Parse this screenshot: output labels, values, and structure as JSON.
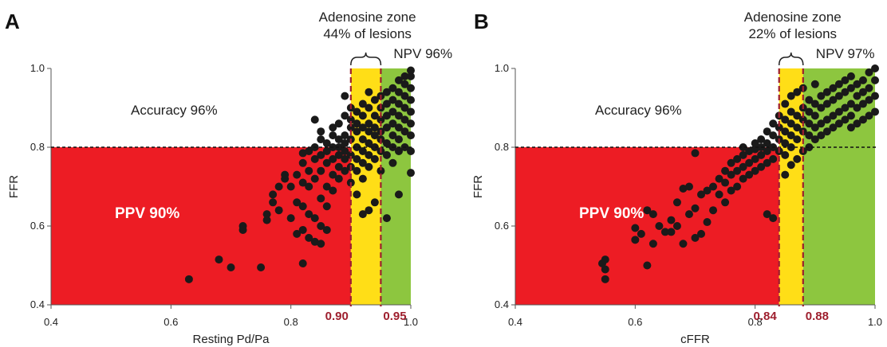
{
  "chart_data": [
    {
      "type": "scatter",
      "panel": "A",
      "xlabel": "Resting Pd/Pa",
      "ylabel": "FFR",
      "xlim": [
        0.4,
        1.0
      ],
      "ylim": [
        0.4,
        1.0
      ],
      "xticks": [
        "0.4",
        "0.6",
        "0.8",
        "1.0"
      ],
      "yticks": [
        "0.4",
        "0.6",
        "0.8",
        "1.0"
      ],
      "threshold_y": 0.8,
      "cutoffs": [
        0.9,
        0.95
      ],
      "cutoff_labels": [
        "0.90",
        "0.95"
      ],
      "zone_title": "Adenosine zone",
      "zone_subtitle": "44% of lesions",
      "npv_label": "NPV 96%",
      "accuracy_label": "Accuracy 96%",
      "ppv_label": "PPV 90%",
      "colors": {
        "red": "#ed1c24",
        "yellow": "#ffde17",
        "green": "#8dc63f",
        "cutoff": "#9e1f2e",
        "point": "#1a1a1a"
      },
      "points": [
        [
          0.63,
          0.465
        ],
        [
          0.68,
          0.515
        ],
        [
          0.7,
          0.495
        ],
        [
          0.72,
          0.59
        ],
        [
          0.72,
          0.6
        ],
        [
          0.75,
          0.495
        ],
        [
          0.76,
          0.615
        ],
        [
          0.76,
          0.63
        ],
        [
          0.77,
          0.66
        ],
        [
          0.77,
          0.68
        ],
        [
          0.78,
          0.64
        ],
        [
          0.78,
          0.7
        ],
        [
          0.79,
          0.72
        ],
        [
          0.79,
          0.73
        ],
        [
          0.8,
          0.62
        ],
        [
          0.8,
          0.7
        ],
        [
          0.81,
          0.58
        ],
        [
          0.81,
          0.66
        ],
        [
          0.81,
          0.73
        ],
        [
          0.82,
          0.505
        ],
        [
          0.82,
          0.59
        ],
        [
          0.82,
          0.65
        ],
        [
          0.82,
          0.71
        ],
        [
          0.82,
          0.76
        ],
        [
          0.82,
          0.785
        ],
        [
          0.83,
          0.57
        ],
        [
          0.83,
          0.63
        ],
        [
          0.83,
          0.7
        ],
        [
          0.83,
          0.74
        ],
        [
          0.83,
          0.79
        ],
        [
          0.84,
          0.56
        ],
        [
          0.84,
          0.62
        ],
        [
          0.84,
          0.72
        ],
        [
          0.84,
          0.77
        ],
        [
          0.84,
          0.8
        ],
        [
          0.84,
          0.87
        ],
        [
          0.85,
          0.555
        ],
        [
          0.85,
          0.6
        ],
        [
          0.85,
          0.67
        ],
        [
          0.85,
          0.74
        ],
        [
          0.85,
          0.78
        ],
        [
          0.85,
          0.82
        ],
        [
          0.85,
          0.84
        ],
        [
          0.86,
          0.59
        ],
        [
          0.86,
          0.65
        ],
        [
          0.86,
          0.7
        ],
        [
          0.86,
          0.76
        ],
        [
          0.86,
          0.79
        ],
        [
          0.86,
          0.81
        ],
        [
          0.87,
          0.69
        ],
        [
          0.87,
          0.73
        ],
        [
          0.87,
          0.77
        ],
        [
          0.87,
          0.8
        ],
        [
          0.87,
          0.83
        ],
        [
          0.87,
          0.85
        ],
        [
          0.88,
          0.72
        ],
        [
          0.88,
          0.75
        ],
        [
          0.88,
          0.78
        ],
        [
          0.88,
          0.8
        ],
        [
          0.88,
          0.82
        ],
        [
          0.88,
          0.86
        ],
        [
          0.89,
          0.74
        ],
        [
          0.89,
          0.77
        ],
        [
          0.89,
          0.79
        ],
        [
          0.89,
          0.81
        ],
        [
          0.89,
          0.83
        ],
        [
          0.89,
          0.88
        ],
        [
          0.89,
          0.93
        ],
        [
          0.9,
          0.71
        ],
        [
          0.9,
          0.75
        ],
        [
          0.9,
          0.78
        ],
        [
          0.9,
          0.82
        ],
        [
          0.9,
          0.85
        ],
        [
          0.9,
          0.87
        ],
        [
          0.9,
          0.9
        ],
        [
          0.91,
          0.68
        ],
        [
          0.91,
          0.74
        ],
        [
          0.91,
          0.77
        ],
        [
          0.91,
          0.8
        ],
        [
          0.91,
          0.84
        ],
        [
          0.91,
          0.86
        ],
        [
          0.91,
          0.89
        ],
        [
          0.92,
          0.63
        ],
        [
          0.92,
          0.72
        ],
        [
          0.92,
          0.76
        ],
        [
          0.92,
          0.79
        ],
        [
          0.92,
          0.82
        ],
        [
          0.92,
          0.85
        ],
        [
          0.92,
          0.88
        ],
        [
          0.92,
          0.91
        ],
        [
          0.93,
          0.64
        ],
        [
          0.93,
          0.75
        ],
        [
          0.93,
          0.78
        ],
        [
          0.93,
          0.81
        ],
        [
          0.93,
          0.84
        ],
        [
          0.93,
          0.86
        ],
        [
          0.93,
          0.9
        ],
        [
          0.93,
          0.94
        ],
        [
          0.94,
          0.66
        ],
        [
          0.94,
          0.77
        ],
        [
          0.94,
          0.8
        ],
        [
          0.94,
          0.83
        ],
        [
          0.94,
          0.85
        ],
        [
          0.94,
          0.88
        ],
        [
          0.94,
          0.92
        ],
        [
          0.95,
          0.74
        ],
        [
          0.95,
          0.79
        ],
        [
          0.95,
          0.82
        ],
        [
          0.95,
          0.84
        ],
        [
          0.95,
          0.87
        ],
        [
          0.95,
          0.9
        ],
        [
          0.95,
          0.93
        ],
        [
          0.96,
          0.62
        ],
        [
          0.96,
          0.78
        ],
        [
          0.96,
          0.81
        ],
        [
          0.96,
          0.85
        ],
        [
          0.96,
          0.88
        ],
        [
          0.96,
          0.91
        ],
        [
          0.96,
          0.94
        ],
        [
          0.97,
          0.76
        ],
        [
          0.97,
          0.8
        ],
        [
          0.97,
          0.83
        ],
        [
          0.97,
          0.86
        ],
        [
          0.97,
          0.89
        ],
        [
          0.97,
          0.92
        ],
        [
          0.97,
          0.95
        ],
        [
          0.98,
          0.68
        ],
        [
          0.98,
          0.79
        ],
        [
          0.98,
          0.82
        ],
        [
          0.98,
          0.85
        ],
        [
          0.98,
          0.88
        ],
        [
          0.98,
          0.91
        ],
        [
          0.98,
          0.94
        ],
        [
          0.98,
          0.97
        ],
        [
          0.99,
          0.8
        ],
        [
          0.99,
          0.84
        ],
        [
          0.99,
          0.87
        ],
        [
          0.99,
          0.9
        ],
        [
          0.99,
          0.93
        ],
        [
          0.99,
          0.96
        ],
        [
          0.99,
          0.98
        ],
        [
          1.0,
          0.735
        ],
        [
          1.0,
          0.79
        ],
        [
          1.0,
          0.83
        ],
        [
          1.0,
          0.86
        ],
        [
          1.0,
          0.89
        ],
        [
          1.0,
          0.92
        ],
        [
          1.0,
          0.95
        ],
        [
          1.0,
          0.98
        ],
        [
          1.0,
          0.995
        ]
      ]
    },
    {
      "type": "scatter",
      "panel": "B",
      "xlabel": "cFFR",
      "ylabel": "FFR",
      "xlim": [
        0.4,
        1.0
      ],
      "ylim": [
        0.4,
        1.0
      ],
      "xticks": [
        "0.4",
        "0.6",
        "0.8",
        "1.0"
      ],
      "yticks": [
        "0.4",
        "0.6",
        "0.8",
        "1.0"
      ],
      "threshold_y": 0.8,
      "cutoffs": [
        0.84,
        0.88
      ],
      "cutoff_labels": [
        "0.84",
        "0.88"
      ],
      "zone_title": "Adenosine zone",
      "zone_subtitle": "22% of lesions",
      "npv_label": "NPV 97%",
      "accuracy_label": "Accuracy 96%",
      "ppv_label": "PPV 90%",
      "colors": {
        "red": "#ed1c24",
        "yellow": "#ffde17",
        "green": "#8dc63f",
        "cutoff": "#9e1f2e",
        "point": "#1a1a1a"
      },
      "points": [
        [
          0.545,
          0.505
        ],
        [
          0.55,
          0.515
        ],
        [
          0.55,
          0.49
        ],
        [
          0.55,
          0.465
        ],
        [
          0.6,
          0.565
        ],
        [
          0.6,
          0.595
        ],
        [
          0.61,
          0.58
        ],
        [
          0.62,
          0.5
        ],
        [
          0.62,
          0.64
        ],
        [
          0.63,
          0.555
        ],
        [
          0.63,
          0.63
        ],
        [
          0.64,
          0.6
        ],
        [
          0.65,
          0.585
        ],
        [
          0.66,
          0.585
        ],
        [
          0.66,
          0.615
        ],
        [
          0.67,
          0.6
        ],
        [
          0.67,
          0.66
        ],
        [
          0.68,
          0.555
        ],
        [
          0.68,
          0.695
        ],
        [
          0.69,
          0.63
        ],
        [
          0.69,
          0.7
        ],
        [
          0.7,
          0.57
        ],
        [
          0.7,
          0.645
        ],
        [
          0.7,
          0.785
        ],
        [
          0.71,
          0.58
        ],
        [
          0.71,
          0.68
        ],
        [
          0.72,
          0.61
        ],
        [
          0.72,
          0.69
        ],
        [
          0.73,
          0.64
        ],
        [
          0.73,
          0.7
        ],
        [
          0.74,
          0.68
        ],
        [
          0.74,
          0.72
        ],
        [
          0.75,
          0.66
        ],
        [
          0.75,
          0.71
        ],
        [
          0.75,
          0.74
        ],
        [
          0.76,
          0.69
        ],
        [
          0.76,
          0.73
        ],
        [
          0.76,
          0.76
        ],
        [
          0.77,
          0.7
        ],
        [
          0.77,
          0.74
        ],
        [
          0.77,
          0.77
        ],
        [
          0.78,
          0.72
        ],
        [
          0.78,
          0.75
        ],
        [
          0.78,
          0.78
        ],
        [
          0.78,
          0.8
        ],
        [
          0.79,
          0.73
        ],
        [
          0.79,
          0.76
        ],
        [
          0.79,
          0.79
        ],
        [
          0.8,
          0.74
        ],
        [
          0.8,
          0.77
        ],
        [
          0.8,
          0.795
        ],
        [
          0.8,
          0.81
        ],
        [
          0.81,
          0.75
        ],
        [
          0.81,
          0.78
        ],
        [
          0.81,
          0.8
        ],
        [
          0.81,
          0.82
        ],
        [
          0.82,
          0.63
        ],
        [
          0.82,
          0.76
        ],
        [
          0.82,
          0.79
        ],
        [
          0.82,
          0.81
        ],
        [
          0.82,
          0.84
        ],
        [
          0.83,
          0.62
        ],
        [
          0.83,
          0.77
        ],
        [
          0.83,
          0.8
        ],
        [
          0.83,
          0.83
        ],
        [
          0.83,
          0.86
        ],
        [
          0.84,
          0.79
        ],
        [
          0.84,
          0.82
        ],
        [
          0.84,
          0.85
        ],
        [
          0.84,
          0.88
        ],
        [
          0.85,
          0.73
        ],
        [
          0.85,
          0.78
        ],
        [
          0.85,
          0.81
        ],
        [
          0.85,
          0.84
        ],
        [
          0.85,
          0.87
        ],
        [
          0.85,
          0.91
        ],
        [
          0.86,
          0.755
        ],
        [
          0.86,
          0.8
        ],
        [
          0.86,
          0.83
        ],
        [
          0.86,
          0.86
        ],
        [
          0.86,
          0.89
        ],
        [
          0.86,
          0.93
        ],
        [
          0.87,
          0.77
        ],
        [
          0.87,
          0.82
        ],
        [
          0.87,
          0.85
        ],
        [
          0.87,
          0.88
        ],
        [
          0.87,
          0.94
        ],
        [
          0.88,
          0.79
        ],
        [
          0.88,
          0.84
        ],
        [
          0.88,
          0.87
        ],
        [
          0.88,
          0.9
        ],
        [
          0.88,
          0.95
        ],
        [
          0.89,
          0.8
        ],
        [
          0.89,
          0.83
        ],
        [
          0.89,
          0.86
        ],
        [
          0.89,
          0.89
        ],
        [
          0.89,
          0.92
        ],
        [
          0.9,
          0.82
        ],
        [
          0.9,
          0.85
        ],
        [
          0.9,
          0.88
        ],
        [
          0.9,
          0.91
        ],
        [
          0.9,
          0.96
        ],
        [
          0.91,
          0.83
        ],
        [
          0.91,
          0.86
        ],
        [
          0.91,
          0.9
        ],
        [
          0.91,
          0.93
        ],
        [
          0.92,
          0.84
        ],
        [
          0.92,
          0.87
        ],
        [
          0.92,
          0.91
        ],
        [
          0.92,
          0.94
        ],
        [
          0.93,
          0.85
        ],
        [
          0.93,
          0.88
        ],
        [
          0.93,
          0.92
        ],
        [
          0.93,
          0.95
        ],
        [
          0.94,
          0.86
        ],
        [
          0.94,
          0.89
        ],
        [
          0.94,
          0.93
        ],
        [
          0.94,
          0.96
        ],
        [
          0.95,
          0.87
        ],
        [
          0.95,
          0.9
        ],
        [
          0.95,
          0.94
        ],
        [
          0.95,
          0.97
        ],
        [
          0.96,
          0.85
        ],
        [
          0.96,
          0.88
        ],
        [
          0.96,
          0.91
        ],
        [
          0.96,
          0.95
        ],
        [
          0.96,
          0.98
        ],
        [
          0.97,
          0.86
        ],
        [
          0.97,
          0.9
        ],
        [
          0.97,
          0.93
        ],
        [
          0.97,
          0.96
        ],
        [
          0.98,
          0.87
        ],
        [
          0.98,
          0.91
        ],
        [
          0.98,
          0.94
        ],
        [
          0.98,
          0.97
        ],
        [
          0.99,
          0.88
        ],
        [
          0.99,
          0.92
        ],
        [
          0.99,
          0.95
        ],
        [
          0.99,
          0.99
        ],
        [
          1.0,
          0.89
        ],
        [
          1.0,
          0.93
        ],
        [
          1.0,
          0.97
        ],
        [
          1.0,
          1.0
        ]
      ]
    }
  ]
}
